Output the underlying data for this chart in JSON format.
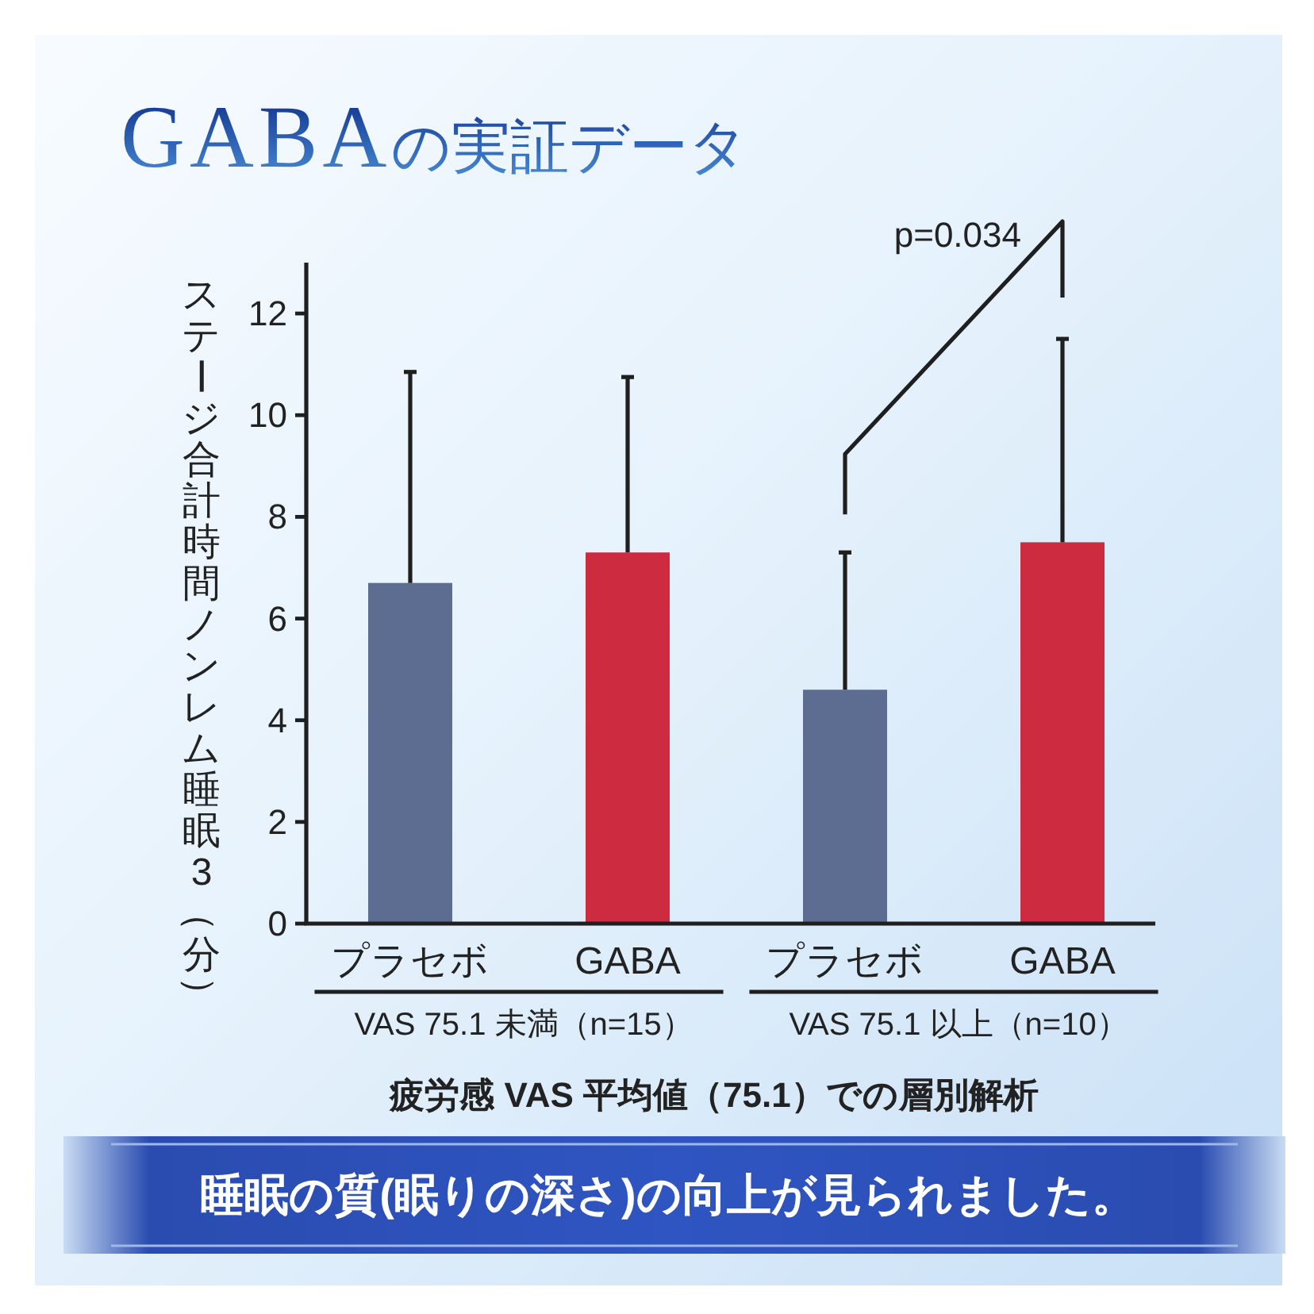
{
  "chart_data": {
    "type": "bar",
    "title": "GABAの実証データ",
    "ylabel": "ステージ合計時間ノンレム睡眠3（分）",
    "xlabel": "疲労感 VAS 平均値（75.1）での層別解析",
    "categories": [
      "プラセボ",
      "GABA",
      "プラセボ",
      "GABA"
    ],
    "values": [
      6.7,
      7.3,
      4.6,
      7.5
    ],
    "colors": [
      "#5d6d92",
      "#cc2b40",
      "#5d6d92",
      "#cc2b40"
    ],
    "errors": [
      [
        6.7,
        10.85
      ],
      [
        7.3,
        10.75
      ],
      [
        4.6,
        7.3
      ],
      [
        7.5,
        11.5
      ]
    ],
    "ylim": [
      0,
      13
    ],
    "yticks": [
      0,
      2,
      4,
      6,
      8,
      10,
      12
    ],
    "annotations": [
      "VAS 75.1 未満（n=15）",
      "VAS 75.1 以上（n=10）",
      "p=0.034",
      "睡眠の質(眠りの深さ)の向上が見られました。"
    ]
  }
}
